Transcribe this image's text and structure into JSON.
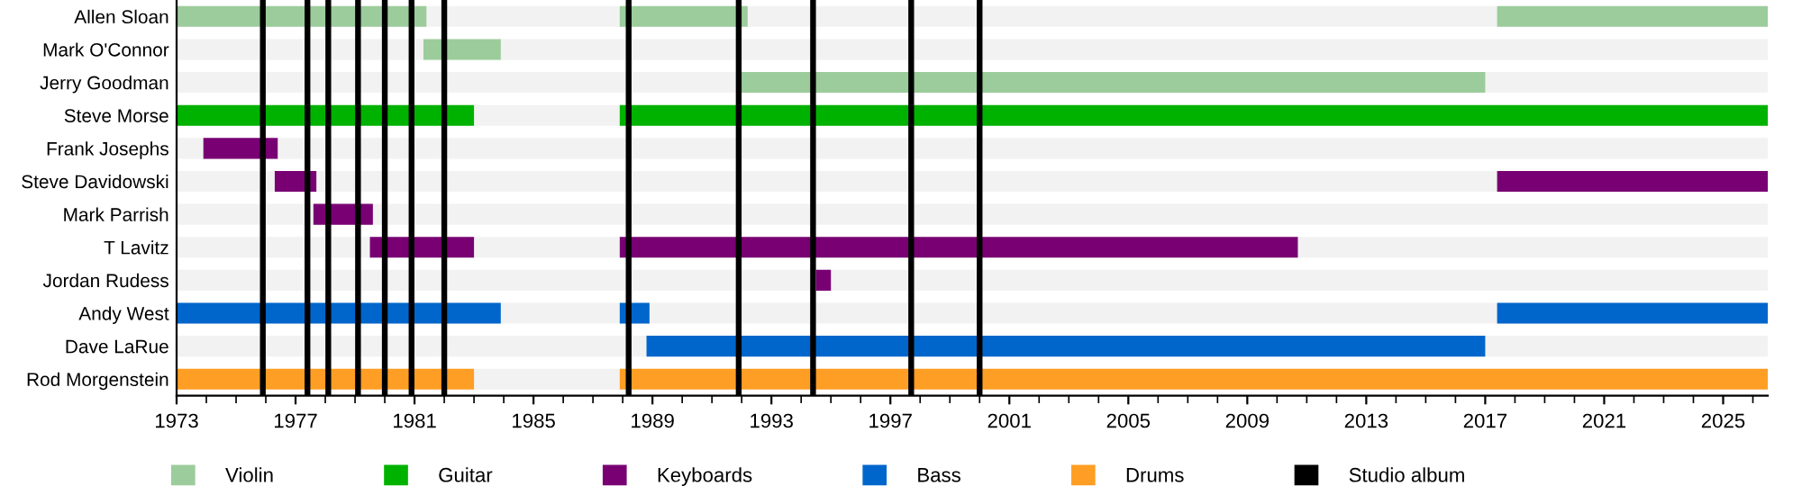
{
  "chart_data": {
    "type": "bar",
    "orientation": "horizontal",
    "grid": false,
    "legend": "bottom",
    "categories": [
      "Allen Sloan",
      "Mark O'Connor",
      "Jerry Goodman",
      "Steve Morse",
      "Frank Josephs",
      "Steve Davidowski",
      "Mark Parrish",
      "T Lavitz",
      "Jordan Rudess",
      "Andy West",
      "Dave LaRue",
      "Rod Morgenstein"
    ],
    "xlim": [
      1973,
      2026.5
    ],
    "xticks": [
      1973,
      1977,
      1981,
      1985,
      1989,
      1993,
      1997,
      2001,
      2005,
      2009,
      2013,
      2017,
      2021,
      2025
    ],
    "series": [
      {
        "name": "Violin",
        "color": "#9ccc9c",
        "base": [
          1973,
          1981.3,
          1991.9,
          null,
          null,
          null,
          null,
          null,
          null,
          null,
          null,
          null
        ],
        "values": [
          8.4,
          2.6,
          25.1,
          null,
          null,
          null,
          null,
          null,
          null,
          null,
          null,
          null
        ]
      },
      {
        "color": "#9ccc9c",
        "base": [
          1987.9,
          null,
          null,
          null,
          null,
          null,
          null,
          null,
          null,
          null,
          null,
          null
        ],
        "values": [
          4.3,
          null,
          null,
          null,
          null,
          null,
          null,
          null,
          null,
          null,
          null,
          null
        ]
      },
      {
        "color": "#9ccc9c",
        "base": [
          2017.4,
          null,
          null,
          null,
          null,
          null,
          null,
          null,
          null,
          null,
          null,
          null
        ],
        "values": [
          9.1,
          null,
          null,
          null,
          null,
          null,
          null,
          null,
          null,
          null,
          null,
          null
        ]
      },
      {
        "name": "Guitar",
        "color": "#00b200",
        "base": [
          null,
          null,
          null,
          1973,
          null,
          null,
          null,
          null,
          null,
          null,
          null,
          null
        ],
        "values": [
          null,
          null,
          null,
          10.0,
          null,
          null,
          null,
          null,
          null,
          null,
          null,
          null
        ]
      },
      {
        "color": "#00b200",
        "base": [
          null,
          null,
          null,
          1987.9,
          null,
          null,
          null,
          null,
          null,
          null,
          null,
          null
        ],
        "values": [
          null,
          null,
          null,
          38.6,
          null,
          null,
          null,
          null,
          null,
          null,
          null,
          null
        ]
      },
      {
        "name": "Keyboards",
        "color": "#780073",
        "base": [
          null,
          null,
          null,
          null,
          1973.9,
          1976.3,
          1977.6,
          1979.5,
          1994.5,
          null,
          null,
          null
        ],
        "values": [
          null,
          null,
          null,
          null,
          2.5,
          1.4,
          2.0,
          3.5,
          0.5,
          null,
          null,
          null
        ]
      },
      {
        "color": "#780073",
        "base": [
          null,
          null,
          null,
          null,
          null,
          2017.4,
          null,
          1987.9,
          null,
          null,
          null,
          null
        ],
        "values": [
          null,
          null,
          null,
          null,
          null,
          9.1,
          null,
          22.8,
          null,
          null,
          null,
          null
        ]
      },
      {
        "name": "Bass",
        "color": "#0066cc",
        "base": [
          null,
          null,
          null,
          null,
          null,
          null,
          null,
          null,
          null,
          1973,
          1988.8,
          null
        ],
        "values": [
          null,
          null,
          null,
          null,
          null,
          null,
          null,
          null,
          null,
          10.9,
          28.2,
          null
        ]
      },
      {
        "color": "#0066cc",
        "base": [
          null,
          null,
          null,
          null,
          null,
          null,
          null,
          null,
          null,
          1987.9,
          null,
          null
        ],
        "values": [
          null,
          null,
          null,
          null,
          null,
          null,
          null,
          null,
          null,
          1.0,
          null,
          null
        ]
      },
      {
        "color": "#0066cc",
        "base": [
          null,
          null,
          null,
          null,
          null,
          null,
          null,
          null,
          null,
          2017.4,
          null,
          null
        ],
        "values": [
          null,
          null,
          null,
          null,
          null,
          null,
          null,
          null,
          null,
          9.1,
          null,
          null
        ]
      },
      {
        "name": "Drums",
        "color": "#ff9e24",
        "base": [
          null,
          null,
          null,
          null,
          null,
          null,
          null,
          null,
          null,
          null,
          null,
          1973
        ],
        "values": [
          null,
          null,
          null,
          null,
          null,
          null,
          null,
          null,
          null,
          null,
          null,
          10.0
        ]
      },
      {
        "color": "#ff9e24",
        "base": [
          null,
          null,
          null,
          null,
          null,
          null,
          null,
          null,
          null,
          null,
          null,
          1987.9
        ],
        "values": [
          null,
          null,
          null,
          null,
          null,
          null,
          null,
          null,
          null,
          null,
          null,
          38.6
        ]
      }
    ],
    "ref_lines": [
      {
        "axis": "x",
        "value": 1975.9,
        "label": "Studio album",
        "color": "#000000"
      },
      {
        "axis": "x",
        "value": 1977.4,
        "color": "#000000"
      },
      {
        "axis": "x",
        "value": 1978.1,
        "color": "#000000"
      },
      {
        "axis": "x",
        "value": 1979.1,
        "color": "#000000"
      },
      {
        "axis": "x",
        "value": 1980.0,
        "color": "#000000"
      },
      {
        "axis": "x",
        "value": 1980.9,
        "color": "#000000"
      },
      {
        "axis": "x",
        "value": 1982.0,
        "color": "#000000"
      },
      {
        "axis": "x",
        "value": 1988.2,
        "color": "#000000"
      },
      {
        "axis": "x",
        "value": 1991.9,
        "color": "#000000"
      },
      {
        "axis": "x",
        "value": 1994.4,
        "color": "#000000"
      },
      {
        "axis": "x",
        "value": 1997.7,
        "color": "#000000"
      },
      {
        "axis": "x",
        "value": 2000.0,
        "color": "#000000"
      }
    ]
  }
}
